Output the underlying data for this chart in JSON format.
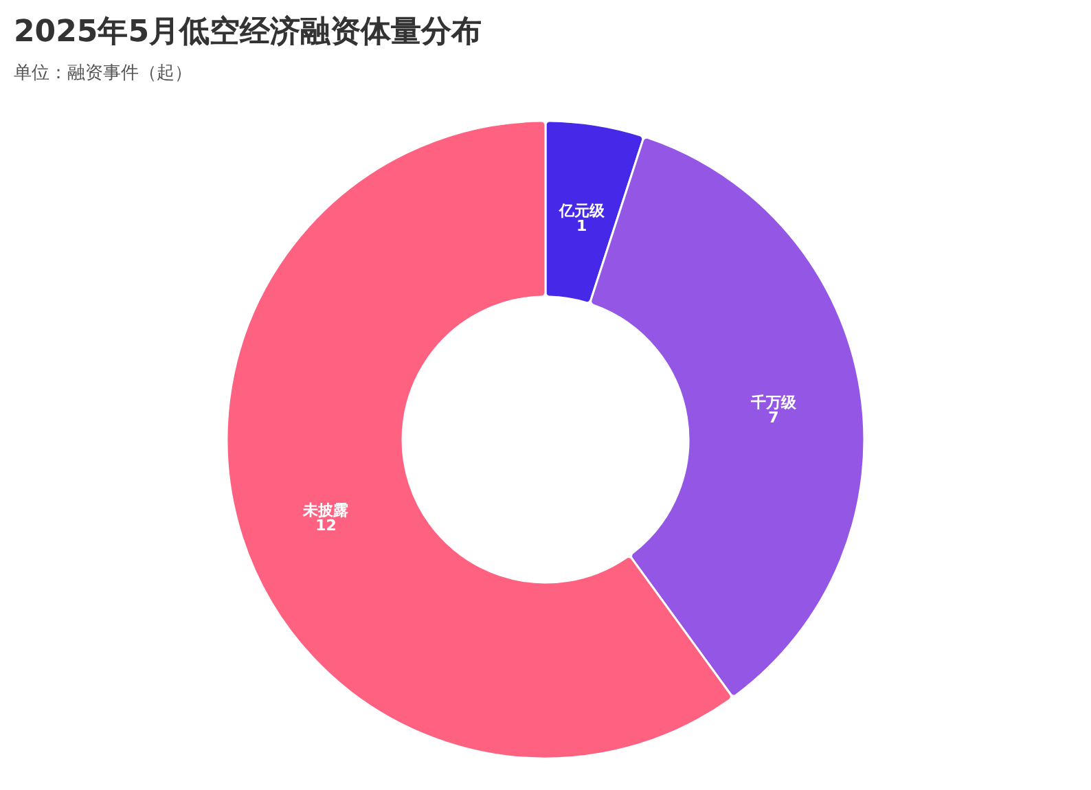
{
  "chart_data": {
    "type": "donut",
    "title": "2025年5月低空经济融资体量分布",
    "subtitle": "单位：融资事件（起）",
    "categories": [
      "亿元级",
      "千万级",
      "未披露"
    ],
    "values": [
      1,
      7,
      12
    ],
    "colors": [
      "#4629e8",
      "#9457e5",
      "#ff6180"
    ],
    "data_labels": true,
    "legend": false
  }
}
